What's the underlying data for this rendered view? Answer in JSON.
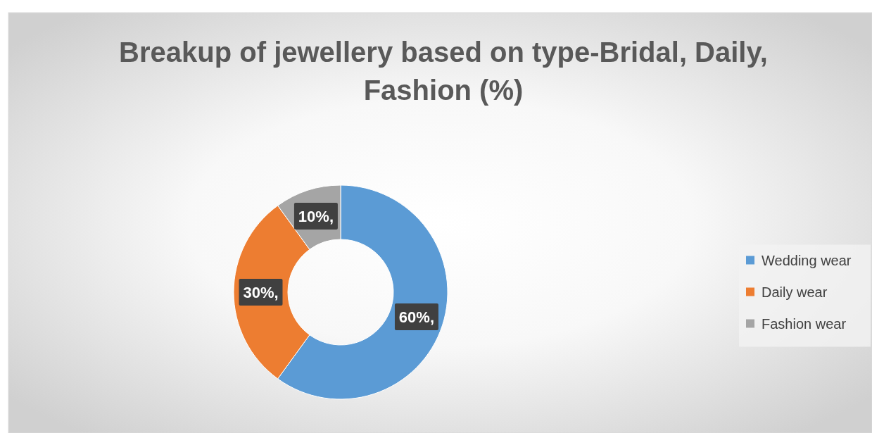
{
  "chart_data": {
    "type": "donut",
    "title": "Breakup of jewellery based on type-Bridal, Daily, Fashion (%)",
    "categories": [
      "Wedding wear",
      "Daily wear",
      "Fashion wear"
    ],
    "values": [
      60,
      30,
      10
    ],
    "colors": [
      "#5b9bd5",
      "#ed7d31",
      "#a5a5a5"
    ],
    "value_labels": [
      "60%,",
      "30%,",
      "10%,"
    ],
    "legend": "right"
  }
}
